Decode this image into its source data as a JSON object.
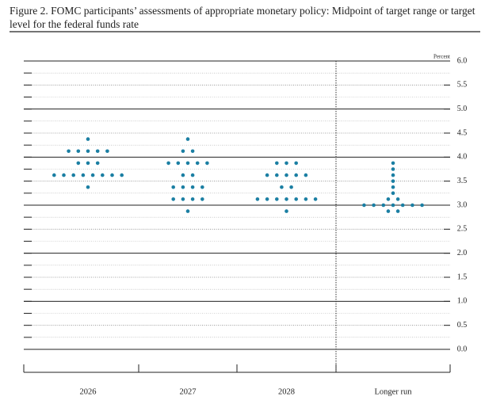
{
  "chart_data": {
    "type": "dot",
    "title": "Figure 2. FOMC participants’ assessments of appropriate monetary policy: Midpoint of target range or target level for the federal funds rate",
    "y_axis_label": "Percent",
    "categories": [
      "2026",
      "2027",
      "2028",
      "Longer run"
    ],
    "color": "#1b7fa3",
    "dots": [
      [
        {
          "rate": 4.375,
          "count": 1
        },
        {
          "rate": 4.125,
          "count": 5
        },
        {
          "rate": 3.875,
          "count": 3
        },
        {
          "rate": 3.625,
          "count": 8
        },
        {
          "rate": 3.375,
          "count": 1
        }
      ],
      [
        {
          "rate": 4.375,
          "count": 1
        },
        {
          "rate": 4.125,
          "count": 2
        },
        {
          "rate": 3.875,
          "count": 5
        },
        {
          "rate": 3.625,
          "count": 2
        },
        {
          "rate": 3.375,
          "count": 4
        },
        {
          "rate": 3.125,
          "count": 4
        },
        {
          "rate": 2.875,
          "count": 1
        }
      ],
      [
        {
          "rate": 3.875,
          "count": 3
        },
        {
          "rate": 3.625,
          "count": 5
        },
        {
          "rate": 3.375,
          "count": 2
        },
        {
          "rate": 3.125,
          "count": 7
        },
        {
          "rate": 2.875,
          "count": 1
        }
      ],
      [
        {
          "rate": 3.875,
          "count": 1
        },
        {
          "rate": 3.75,
          "count": 1
        },
        {
          "rate": 3.625,
          "count": 1
        },
        {
          "rate": 3.5,
          "count": 1
        },
        {
          "rate": 3.375,
          "count": 1
        },
        {
          "rate": 3.25,
          "count": 1
        },
        {
          "rate": 3.125,
          "count": 2
        },
        {
          "rate": 3.0,
          "count": 7
        },
        {
          "rate": 2.875,
          "count": 2
        }
      ]
    ],
    "ylim": [
      0,
      6
    ],
    "yticks": [
      {
        "value": 0,
        "label": "0.0"
      },
      {
        "value": 0.5,
        "label": "0.5"
      },
      {
        "value": 1,
        "label": "1.0"
      },
      {
        "value": 1.5,
        "label": "1.5"
      },
      {
        "value": 2,
        "label": "2.0"
      },
      {
        "value": 2.5,
        "label": "2.5"
      },
      {
        "value": 3,
        "label": "3.0"
      },
      {
        "value": 3.5,
        "label": "3.5"
      },
      {
        "value": 4,
        "label": "4.0"
      },
      {
        "value": 4.5,
        "label": "4.5"
      },
      {
        "value": 5,
        "label": "5.0"
      },
      {
        "value": 5.5,
        "label": "5.5"
      },
      {
        "value": 6,
        "label": "6.0"
      }
    ],
    "grid": true
  }
}
